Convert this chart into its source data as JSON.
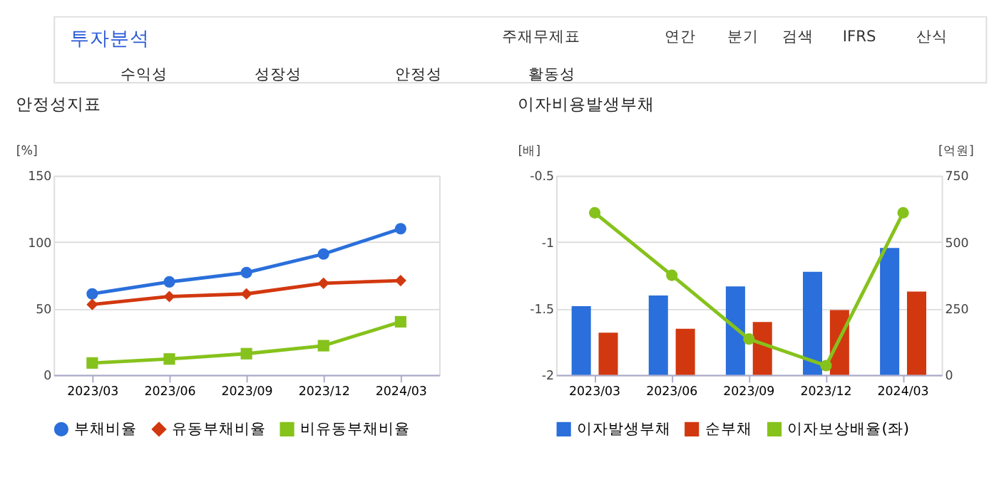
{
  "chart_data": [
    {
      "type": "line",
      "title": "안정성지표",
      "ylabel": "[%]",
      "categories": [
        "2023/03",
        "2023/06",
        "2023/09",
        "2023/12",
        "2024/03"
      ],
      "ylim": [
        0,
        150
      ],
      "yticks": [
        0,
        50,
        100,
        150
      ],
      "grid": "y",
      "legend": "bottom",
      "annotations": [
        "투자분석",
        "주재무제표",
        "연간",
        "분기",
        "검색",
        "IFRS",
        "산식",
        "수익성",
        "성장성",
        "안정성",
        "활동성"
      ],
      "series": [
        {
          "name": "부채비율",
          "color": "#2a6fdb",
          "marker": "circle",
          "values": [
            61,
            70,
            77,
            91,
            110
          ]
        },
        {
          "name": "유동부채비율",
          "color": "#d2380f",
          "marker": "diamond",
          "values": [
            53,
            59,
            61,
            69,
            71
          ]
        },
        {
          "name": "비유동부채비율",
          "color": "#86c21c",
          "marker": "square",
          "values": [
            9,
            12,
            16,
            22,
            40
          ]
        }
      ]
    },
    {
      "type": "bar",
      "title": "이자비용발생부채",
      "ylabel": "[배]",
      "y2label": "[억원]",
      "categories": [
        "2023/03",
        "2023/06",
        "2023/09",
        "2023/12",
        "2024/03"
      ],
      "ylim": [
        -2,
        -0.5
      ],
      "yticks": [
        {
          "value": -2,
          "label": "-2"
        },
        {
          "value": -1.5,
          "label": "-1.5"
        },
        {
          "value": -1,
          "label": "-1"
        },
        {
          "value": -0.5,
          "label": "-0.5"
        }
      ],
      "y2lim": [
        0,
        750
      ],
      "y2ticks": [
        0,
        250,
        500,
        750
      ],
      "grid": "y",
      "legend": "bottom",
      "series": [
        {
          "name": "이자발생부채",
          "color": "#2a6fdb",
          "axis": "y2",
          "values": [
            259,
            299,
            333,
            388,
            478
          ]
        },
        {
          "name": "순부채",
          "color": "#d2380f",
          "axis": "y2",
          "values": [
            159,
            174,
            199,
            244,
            314
          ]
        },
        {
          "name": "이자보상배율(좌)",
          "type": "line",
          "marker": "circle",
          "color": "#86c21c",
          "values": [
            -0.78,
            -1.25,
            -1.73,
            -1.93,
            -0.78
          ]
        }
      ]
    }
  ]
}
